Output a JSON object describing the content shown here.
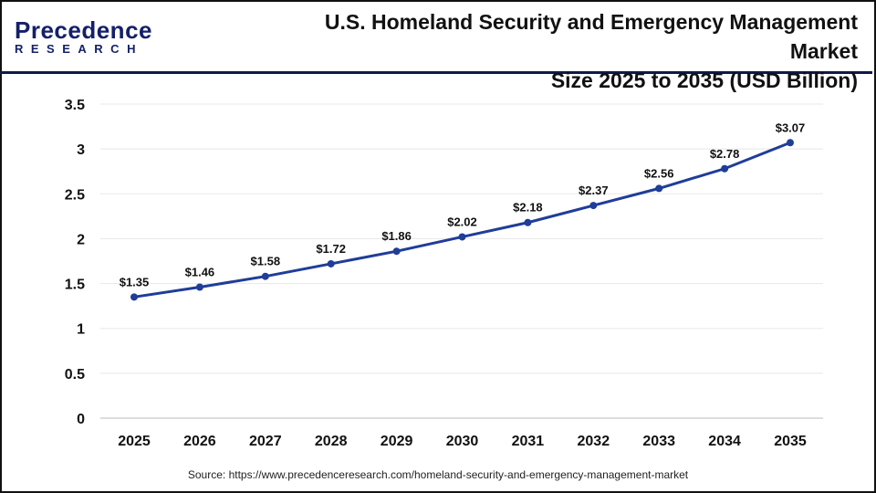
{
  "logo": {
    "line1": "Precedence",
    "line2": "RESEARCH"
  },
  "title_line1": "U.S. Homeland Security and Emergency Management Market",
  "title_line2": "Size 2025 to 2035 (USD Billion)",
  "source": "Source: https://www.precedenceresearch.com/homeland-security-and-emergency-management-market",
  "chart_data": {
    "type": "line",
    "title": "U.S. Homeland Security and Emergency Management Market Size 2025 to 2035 (USD Billion)",
    "categories": [
      "2025",
      "2026",
      "2027",
      "2028",
      "2029",
      "2030",
      "2031",
      "2032",
      "2033",
      "2034",
      "2035"
    ],
    "values": [
      1.35,
      1.46,
      1.58,
      1.72,
      1.86,
      2.02,
      2.18,
      2.37,
      2.56,
      2.78,
      3.07
    ],
    "data_labels": [
      "$1.35",
      "$1.46",
      "$1.58",
      "$1.72",
      "$1.86",
      "$2.02",
      "$2.18",
      "$2.37",
      "$2.56",
      "$2.78",
      "$3.07"
    ],
    "ylim": [
      0,
      3.5
    ],
    "yticks": [
      "0",
      "0.5",
      "1",
      "1.5",
      "2",
      "2.5",
      "3",
      "3.5"
    ],
    "grid": true,
    "color": "#1f3d99"
  }
}
